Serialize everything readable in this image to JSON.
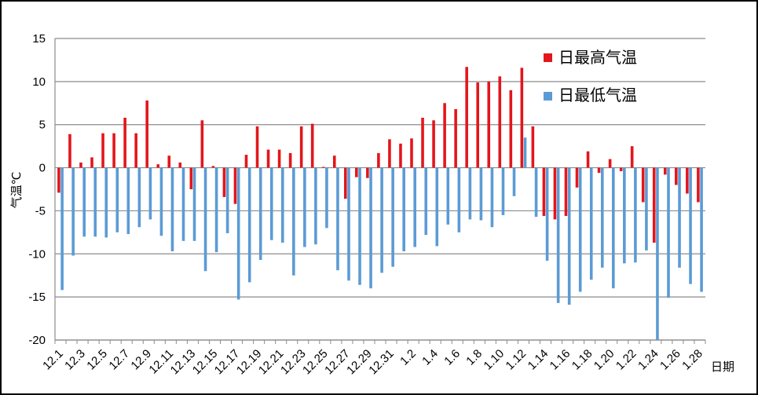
{
  "chart_data": {
    "type": "bar",
    "xlabel": "日期",
    "ylabel": "气温℃",
    "ylim": [
      -20,
      15
    ],
    "yticks": [
      15,
      10,
      5,
      0,
      -5,
      -10,
      -15,
      -20
    ],
    "grid": true,
    "legend_position": "top-right",
    "categories": [
      "12.1",
      "12.2",
      "12.3",
      "12.4",
      "12.5",
      "12.6",
      "12.7",
      "12.8",
      "12.9",
      "12.10",
      "12.11",
      "12.12",
      "12.13",
      "12.14",
      "12.15",
      "12.16",
      "12.17",
      "12.18",
      "12.19",
      "12.20",
      "12.21",
      "12.22",
      "12.23",
      "12.24",
      "12.25",
      "12.26",
      "12.27",
      "12.28",
      "12.29",
      "12.30",
      "12.31",
      "1.1",
      "1.2",
      "1.3",
      "1.4",
      "1.5",
      "1.6",
      "1.7",
      "1.8",
      "1.9",
      "1.10",
      "1.11",
      "1.12",
      "1.13",
      "1.14",
      "1.15",
      "1.16",
      "1.17",
      "1.18",
      "1.19",
      "1.20",
      "1.21",
      "1.22",
      "1.23",
      "1.24",
      "1.25",
      "1.26",
      "1.27",
      "1.28"
    ],
    "tick_labels": [
      "12.1",
      "12.3",
      "12.5",
      "12.7",
      "12.9",
      "12.11",
      "12.13",
      "12.15",
      "12.17",
      "12.19",
      "12.21",
      "12.23",
      "12.25",
      "12.27",
      "12.29",
      "12.31",
      "1.2",
      "1.4",
      "1.6",
      "1.8",
      "1.10",
      "1.12",
      "1.14",
      "1.16",
      "1.18",
      "1.20",
      "1.22",
      "1.24",
      "1.26",
      "1.28"
    ],
    "series": [
      {
        "name": "日最高气温",
        "color": "#e3161b",
        "values": [
          -2.9,
          3.9,
          0.6,
          1.2,
          4.0,
          4.0,
          5.8,
          4.0,
          7.8,
          0.4,
          1.4,
          0.6,
          -2.5,
          5.5,
          0.2,
          -3.4,
          -4.2,
          1.5,
          4.8,
          2.1,
          2.1,
          1.7,
          4.8,
          5.1,
          0.1,
          1.4,
          -3.6,
          -1.1,
          -1.2,
          1.7,
          3.3,
          2.8,
          3.4,
          5.8,
          5.5,
          7.5,
          6.8,
          11.7,
          9.9,
          10.0,
          10.6,
          9.0,
          11.6,
          4.8,
          -5.6,
          -6.0,
          -5.6,
          -2.3,
          1.9,
          -0.6,
          1.0,
          -0.4,
          2.5,
          -4.0,
          -8.7,
          -0.8,
          -2.0,
          -3.0,
          -4.0
        ]
      },
      {
        "name": "日最低气温",
        "color": "#5b9bd5",
        "values": [
          -14.2,
          -10.2,
          -8.0,
          -8.0,
          -8.1,
          -7.5,
          -7.7,
          -6.9,
          -6.0,
          -7.9,
          -9.7,
          -8.5,
          -8.5,
          -12.0,
          -9.8,
          -7.6,
          -15.3,
          -13.3,
          -10.7,
          -8.4,
          -8.7,
          -12.5,
          -9.2,
          -8.9,
          -7.0,
          -11.9,
          -13.1,
          -13.6,
          -14.0,
          -12.2,
          -11.5,
          -9.7,
          -9.2,
          -7.8,
          -9.1,
          -6.6,
          -7.5,
          -6.0,
          -6.1,
          -6.9,
          -5.5,
          -3.3,
          3.5,
          -5.7,
          -10.8,
          -15.7,
          -15.9,
          -14.4,
          -13.0,
          -11.6,
          -14.0,
          -11.1,
          -11.0,
          -9.6,
          -20.0,
          -15.1,
          -11.6,
          -13.5,
          -14.4
        ]
      }
    ]
  }
}
